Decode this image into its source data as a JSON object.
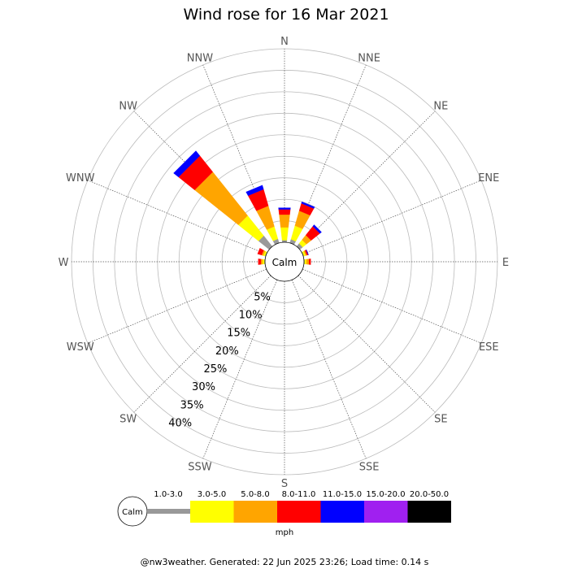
{
  "chart_data": {
    "type": "wind-rose",
    "title": "Wind rose for 16 Mar 2021",
    "directions": [
      "N",
      "NNE",
      "NE",
      "ENE",
      "E",
      "ESE",
      "SE",
      "SSE",
      "S",
      "SSW",
      "SW",
      "WSW",
      "W",
      "WNW",
      "NW",
      "NNW"
    ],
    "radial_labels": [
      "5%",
      "10%",
      "15%",
      "20%",
      "25%",
      "30%",
      "35%",
      "40%"
    ],
    "radial_max_percent": 45,
    "calm_label": "Calm",
    "speed_bins": [
      "1.0-3.0",
      "3.0-5.0",
      "5.0-8.0",
      "8.0-11.0",
      "11.0-15.0",
      "15.0-20.0",
      "20.0-50.0"
    ],
    "bin_colors": [
      "#999999",
      "#ffff00",
      "#ffa500",
      "#ff0000",
      "#0000ff",
      "#a020f0",
      "#000000"
    ],
    "unit": "mph",
    "series": [
      {
        "direction": "N",
        "cumulative_percent": [
          0.5,
          3.5,
          6.5,
          7.7,
          8.1
        ]
      },
      {
        "direction": "NNE",
        "cumulative_percent": [
          0.9,
          4.2,
          7.8,
          9.6,
          10.0
        ]
      },
      {
        "direction": "NE",
        "cumulative_percent": [
          0.9,
          2.0,
          3.4,
          6.0,
          6.5
        ]
      },
      {
        "direction": "NW",
        "cumulative_percent": [
          3.2,
          9.2,
          22.2,
          27.0,
          28.5
        ]
      },
      {
        "direction": "NNW",
        "cumulative_percent": [
          1.0,
          4.0,
          9.0,
          13.0,
          14.0
        ]
      },
      {
        "direction": "WNW",
        "cumulative_percent": [
          0.2,
          0.6,
          1.0,
          2.0
        ]
      },
      {
        "direction": "W",
        "cumulative_percent": [
          0.2,
          0.6,
          1.0,
          1.6
        ]
      },
      {
        "direction": "ENE",
        "cumulative_percent": [
          0.2,
          0.6,
          0.9,
          1.2,
          1.3
        ]
      },
      {
        "direction": "E",
        "cumulative_percent": [
          0.2,
          0.6,
          1.2,
          1.6
        ]
      }
    ]
  },
  "footer": "@nw3weather. Generated: 22 Jun 2025 23:26; Load time: 0.14 s"
}
